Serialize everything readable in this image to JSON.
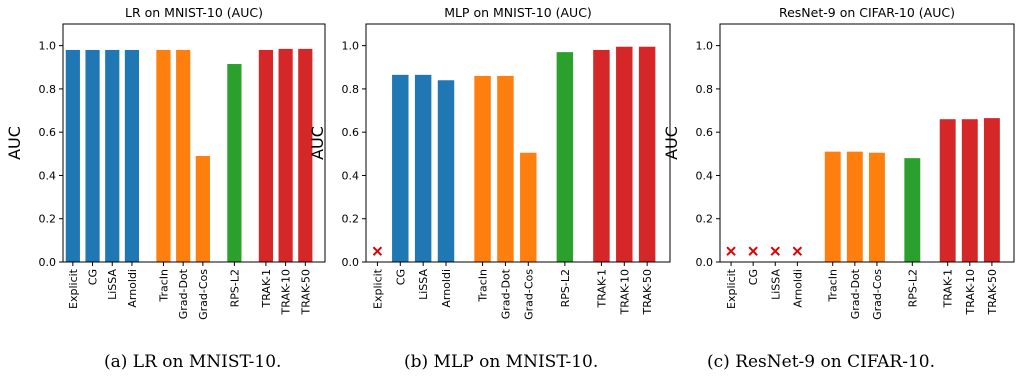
{
  "captions": [
    "(a) LR on MNIST-10.",
    "(b) MLP on MNIST-10.",
    "(c) ResNet-9 on CIFAR-10."
  ],
  "colors": {
    "blue": "#1f77b4",
    "orange": "#ff7f0e",
    "green": "#2ca02c",
    "red": "#d62728",
    "missing_marker": "#e00000"
  },
  "chart_data": [
    {
      "type": "bar",
      "title": "LR on MNIST-10 (AUC)",
      "ylabel": "AUC",
      "ylim": [
        0,
        1.1
      ],
      "yticks": [
        "0.0",
        "0.2",
        "0.4",
        "0.6",
        "0.8",
        "1.0"
      ],
      "grid": false,
      "categories": [
        "Explicit",
        "CG",
        "LiSSA",
        "Arnoldi",
        "TracIn",
        "Grad-Dot",
        "Grad-Cos",
        "RPS-L2",
        "TRAK-1",
        "TRAK-10",
        "TRAK-50"
      ],
      "groups": [
        "blue",
        "blue",
        "blue",
        "blue",
        "orange",
        "orange",
        "orange",
        "green",
        "red",
        "red",
        "red"
      ],
      "values": [
        0.98,
        0.98,
        0.98,
        0.98,
        0.98,
        0.98,
        0.49,
        0.915,
        0.98,
        0.985,
        0.985
      ]
    },
    {
      "type": "bar",
      "title": "MLP on MNIST-10 (AUC)",
      "ylabel": "AUC",
      "ylim": [
        0,
        1.1
      ],
      "yticks": [
        "0.0",
        "0.2",
        "0.4",
        "0.6",
        "0.8",
        "1.0"
      ],
      "grid": false,
      "categories": [
        "Explicit",
        "CG",
        "LiSSA",
        "Arnoldi",
        "TracIn",
        "Grad-Dot",
        "Grad-Cos",
        "RPS-L2",
        "TRAK-1",
        "TRAK-10",
        "TRAK-50"
      ],
      "groups": [
        "blue",
        "blue",
        "blue",
        "blue",
        "orange",
        "orange",
        "orange",
        "green",
        "red",
        "red",
        "red"
      ],
      "values": [
        null,
        0.865,
        0.865,
        0.84,
        0.86,
        0.86,
        0.505,
        0.97,
        0.98,
        0.995,
        0.995
      ]
    },
    {
      "type": "bar",
      "title": "ResNet-9 on CIFAR-10 (AUC)",
      "ylabel": "AUC",
      "ylim": [
        0,
        1.1
      ],
      "yticks": [
        "0.0",
        "0.2",
        "0.4",
        "0.6",
        "0.8",
        "1.0"
      ],
      "grid": false,
      "categories": [
        "Explicit",
        "CG",
        "LiSSA",
        "Arnoldi",
        "TracIn",
        "Grad-Dot",
        "Grad-Cos",
        "RPS-L2",
        "TRAK-1",
        "TRAK-10",
        "TRAK-50"
      ],
      "groups": [
        "blue",
        "blue",
        "blue",
        "blue",
        "orange",
        "orange",
        "orange",
        "green",
        "red",
        "red",
        "red"
      ],
      "values": [
        null,
        null,
        null,
        null,
        0.51,
        0.51,
        0.505,
        0.48,
        0.66,
        0.66,
        0.665
      ]
    }
  ]
}
